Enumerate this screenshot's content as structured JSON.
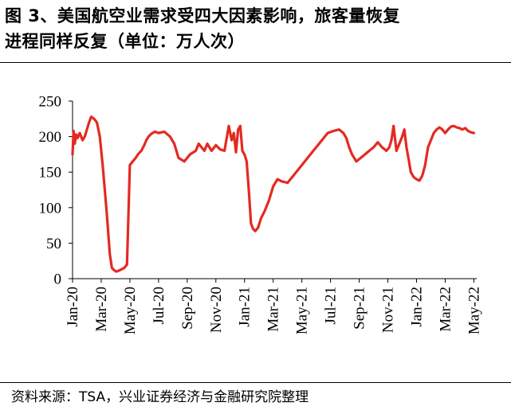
{
  "title": {
    "line1": "图 3、美国航空业需求受四大因素影响，旅客量恢复",
    "line2": "进程同样反复（单位：万人次）"
  },
  "source": "资料来源：TSA，兴业证券经济与金融研究院整理",
  "colors": {
    "line": "#e32a22",
    "axis": "#000000",
    "text": "#000000"
  },
  "chart_data": {
    "type": "line",
    "title": "美国航空业需求受四大因素影响，旅客量恢复进程同样反复",
    "ylabel": "万人次",
    "xlabel": "",
    "ylim": [
      0,
      250
    ],
    "yticks": [
      "0",
      "50",
      "100",
      "150",
      "200",
      "250"
    ],
    "xlim": [
      0,
      28.2
    ],
    "xticks": [
      "Jan-20",
      "Mar-20",
      "May-20",
      "Jul-20",
      "Sep-20",
      "Nov-20",
      "Jan-21",
      "Mar-21",
      "May-21",
      "Jul-21",
      "Sep-21",
      "Nov-21",
      "Jan-22",
      "Mar-22",
      "May-22"
    ],
    "grid": false,
    "legend": "none",
    "series": [
      {
        "name": "TSA旅客量",
        "x": [
          0.0,
          0.07,
          0.15,
          0.25,
          0.35,
          0.5,
          0.7,
          0.85,
          1.0,
          1.15,
          1.3,
          1.5,
          1.7,
          1.9,
          2.1,
          2.4,
          2.6,
          2.75,
          2.9,
          3.05,
          3.2,
          3.4,
          3.6,
          3.8,
          4.0,
          4.2,
          4.4,
          4.6,
          4.8,
          5.0,
          5.15,
          5.3,
          5.5,
          5.75,
          6.0,
          6.4,
          6.8,
          7.1,
          7.4,
          7.8,
          8.2,
          8.6,
          8.8,
          9.0,
          9.2,
          9.4,
          9.7,
          10.0,
          10.3,
          10.6,
          10.9,
          11.1,
          11.25,
          11.4,
          11.55,
          11.7,
          11.85,
          12.0,
          12.15,
          12.3,
          12.45,
          12.6,
          12.75,
          12.95,
          13.15,
          13.4,
          13.7,
          14.0,
          14.3,
          14.6,
          15.0,
          15.4,
          15.8,
          16.2,
          16.6,
          17.0,
          17.4,
          17.8,
          18.2,
          18.6,
          18.9,
          19.1,
          19.3,
          19.5,
          19.8,
          20.1,
          20.4,
          20.7,
          21.0,
          21.3,
          21.6,
          21.9,
          22.1,
          22.25,
          22.4,
          22.6,
          22.8,
          23.0,
          23.15,
          23.3,
          23.45,
          23.6,
          23.8,
          24.0,
          24.2,
          24.4,
          24.6,
          24.8,
          25.0,
          25.2,
          25.4,
          25.6,
          25.8,
          26.0,
          26.2,
          26.4,
          26.6,
          26.8,
          27.0,
          27.2,
          27.4,
          27.6,
          27.8,
          28.0
        ],
        "values": [
          175,
          208,
          190,
          203,
          198,
          205,
          195,
          200,
          210,
          220,
          228,
          225,
          220,
          200,
          160,
          90,
          35,
          15,
          12,
          10,
          11,
          13,
          15,
          20,
          160,
          165,
          170,
          176,
          180,
          188,
          195,
          200,
          204,
          207,
          205,
          207,
          200,
          190,
          170,
          165,
          175,
          180,
          190,
          185,
          180,
          190,
          180,
          188,
          182,
          180,
          215,
          195,
          205,
          178,
          210,
          215,
          180,
          175,
          165,
          125,
          78,
          70,
          67,
          72,
          85,
          95,
          110,
          130,
          140,
          137,
          135,
          145,
          155,
          165,
          175,
          185,
          195,
          205,
          208,
          210,
          205,
          198,
          185,
          175,
          165,
          170,
          175,
          180,
          185,
          192,
          185,
          180,
          185,
          195,
          215,
          180,
          190,
          200,
          210,
          185,
          168,
          150,
          143,
          140,
          138,
          145,
          160,
          185,
          195,
          205,
          210,
          213,
          210,
          205,
          210,
          214,
          215,
          213,
          212,
          210,
          212,
          208,
          206,
          205
        ]
      }
    ]
  }
}
